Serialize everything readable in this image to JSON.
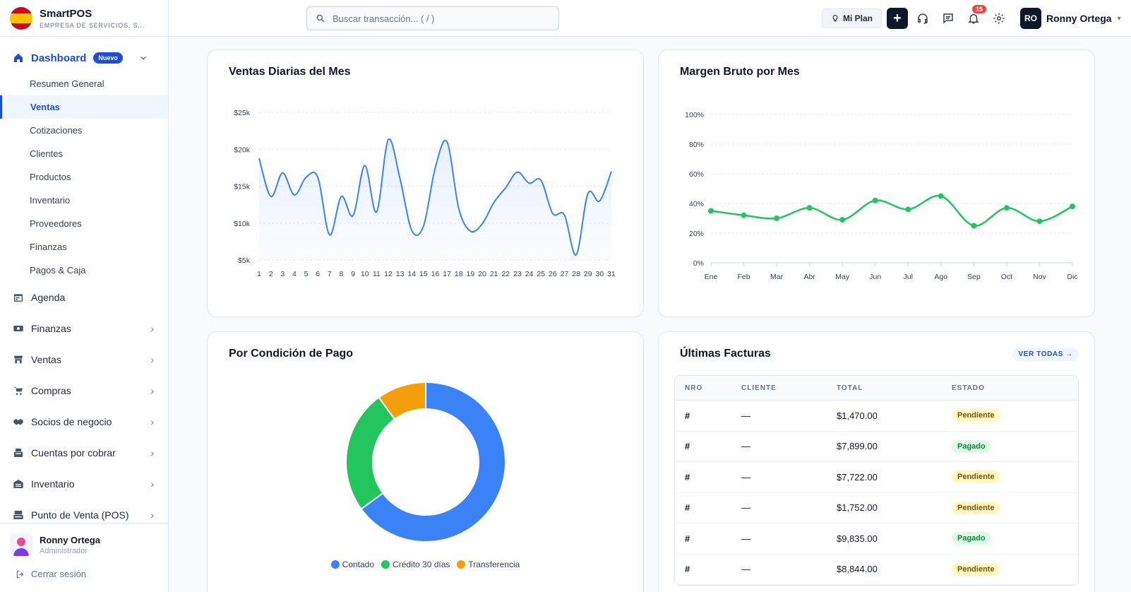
{
  "brand": {
    "name": "SmartPOS",
    "subtitle": "EMPRESA DE SERVICIOS, S..."
  },
  "sidebar": {
    "dashboard": {
      "label": "Dashboard",
      "badge": "Nuevo"
    },
    "sub_items": [
      {
        "label": "Resumen General",
        "active": false
      },
      {
        "label": "Ventas",
        "active": true
      },
      {
        "label": "Cotizaciones",
        "active": false
      },
      {
        "label": "Clientes",
        "active": false
      },
      {
        "label": "Productos",
        "active": false
      },
      {
        "label": "Inventario",
        "active": false
      },
      {
        "label": "Proveedores",
        "active": false
      },
      {
        "label": "Finanzas",
        "active": false
      },
      {
        "label": "Pagos & Caja",
        "active": false
      }
    ],
    "main_items": [
      {
        "label": "Agenda",
        "icon": "calendar-icon"
      },
      {
        "label": "Finanzas",
        "icon": "money-icon"
      },
      {
        "label": "Ventas",
        "icon": "store-icon"
      },
      {
        "label": "Compras",
        "icon": "cart-icon"
      },
      {
        "label": "Socios de negocio",
        "icon": "handshake-icon"
      },
      {
        "label": "Cuentas por cobrar",
        "icon": "register-icon"
      },
      {
        "label": "Inventario",
        "icon": "warehouse-icon"
      },
      {
        "label": "Punto de Venta (POS)",
        "icon": "pos-icon"
      }
    ],
    "user": {
      "name": "Ronny Ortega",
      "role": "Administrador"
    },
    "logout_label": "Cerrar sesión"
  },
  "topbar": {
    "search_placeholder": "Buscar transacción... ( / )",
    "plan_label": "Mi Plan",
    "plus_label": "+",
    "notification_count": "15",
    "user_initials": "RO",
    "user_name": "Ronny Ortega"
  },
  "colors": {
    "accent": "#1d4ed8",
    "blue": "#3b82f6",
    "green": "#22c55e",
    "orange": "#f59e0b",
    "dark": "#0f172a"
  },
  "charts": {
    "daily_sales": {
      "title": "Ventas Diarias del Mes",
      "y_ticks": [
        "$25k",
        "$20k",
        "$15k",
        "$10k",
        "$5k"
      ]
    },
    "gross_margin": {
      "title": "Margen Bruto por Mes",
      "y_ticks": [
        "100%",
        "80%",
        "60%",
        "40%",
        "20%",
        "0%"
      ]
    },
    "payment_condition": {
      "title": "Por Condición de Pago"
    }
  },
  "chart_data": [
    {
      "type": "area",
      "title": "Ventas Diarias del Mes",
      "categories": [
        "1",
        "2",
        "3",
        "4",
        "5",
        "6",
        "7",
        "8",
        "9",
        "10",
        "11",
        "12",
        "13",
        "14",
        "15",
        "16",
        "17",
        "18",
        "19",
        "20",
        "21",
        "22",
        "23",
        "24",
        "25",
        "26",
        "27",
        "28",
        "29",
        "30",
        "31"
      ],
      "values": [
        18800,
        13600,
        16800,
        13800,
        16200,
        16200,
        8400,
        13600,
        11000,
        17800,
        11500,
        21300,
        16000,
        9000,
        9600,
        17500,
        21000,
        12000,
        8900,
        9900,
        12800,
        14800,
        16900,
        15400,
        15800,
        11300,
        11100,
        5700,
        14000,
        13000,
        17000
      ],
      "ylim": [
        5000,
        25000
      ],
      "xlabel": "",
      "ylabel": "",
      "grid": true
    },
    {
      "type": "line",
      "title": "Margen Bruto por Mes",
      "categories": [
        "Ene",
        "Feb",
        "Mar",
        "Abr",
        "May",
        "Jun",
        "Jul",
        "Ago",
        "Sep",
        "Oct",
        "Nov",
        "Dic"
      ],
      "values": [
        35,
        32,
        30,
        37,
        29,
        42,
        36,
        45,
        25,
        37,
        28,
        38
      ],
      "ylim": [
        0,
        100
      ],
      "xlabel": "",
      "ylabel": "",
      "grid": true
    },
    {
      "type": "pie",
      "title": "Por Condición de Pago",
      "categories": [
        "Contado",
        "Crédito 30 días",
        "Transferencia"
      ],
      "values": [
        65,
        25,
        10
      ],
      "colors": [
        "#3b82f6",
        "#22c55e",
        "#f59e0b"
      ],
      "legend": "bottom"
    }
  ],
  "invoices": {
    "title": "Últimas Facturas",
    "view_all": "VER TODAS →",
    "columns": [
      "NRO",
      "CLIENTE",
      "TOTAL",
      "ESTADO"
    ],
    "rows": [
      {
        "nro": "#",
        "cliente": "—",
        "total": "$1,470.00",
        "estado": "Pendiente"
      },
      {
        "nro": "#",
        "cliente": "—",
        "total": "$7,899.00",
        "estado": "Pagado"
      },
      {
        "nro": "#",
        "cliente": "—",
        "total": "$7,722.00",
        "estado": "Pendiente"
      },
      {
        "nro": "#",
        "cliente": "—",
        "total": "$1,752.00",
        "estado": "Pendiente"
      },
      {
        "nro": "#",
        "cliente": "—",
        "total": "$9,835.00",
        "estado": "Pagado"
      },
      {
        "nro": "#",
        "cliente": "—",
        "total": "$8,844.00",
        "estado": "Pendiente"
      }
    ]
  }
}
